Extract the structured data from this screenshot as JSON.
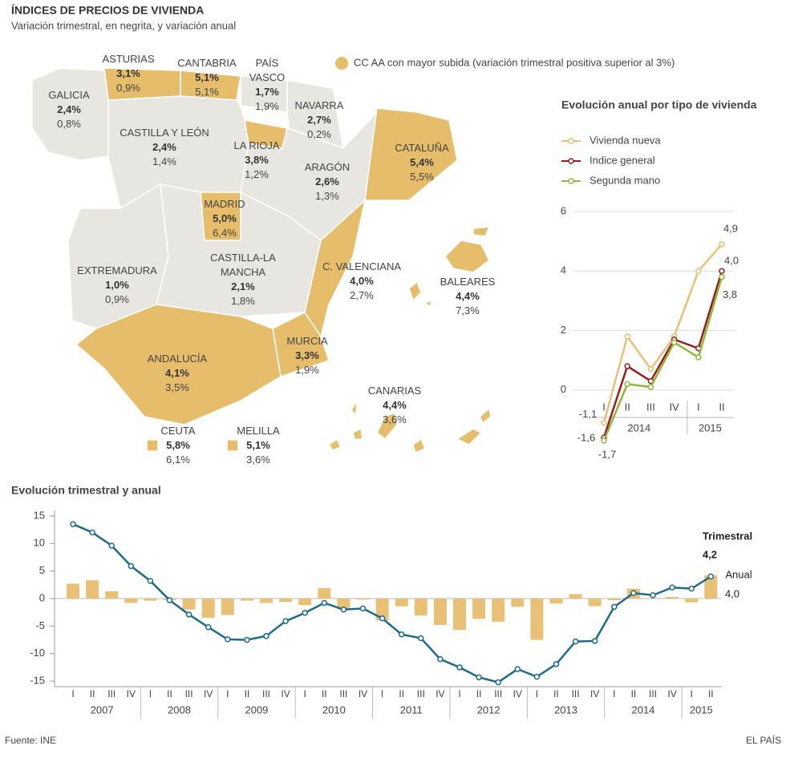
{
  "header": {
    "title": "ÍNDICES DE PRECIOS DE VIVIENDA",
    "subtitle": "Variación trimestral, en negrita, y variación anual"
  },
  "map": {
    "legend": "CC AA con mayor subida (variación trimestral positiva superior al 3%)",
    "highlight_color": "#e6bd6b",
    "base_color": "#e8e6e1",
    "regions": [
      {
        "name": "ASTURIAS",
        "quarterly": "3,1%",
        "annual": "0,9%",
        "highlighted": true
      },
      {
        "name": "CANTABRIA",
        "quarterly": "5,1%",
        "annual": "5,1%",
        "highlighted": true
      },
      {
        "name": "PAÍS VASCO",
        "quarterly": "1,7%",
        "annual": "1,9%",
        "highlighted": false
      },
      {
        "name": "GALICIA",
        "quarterly": "2,4%",
        "annual": "0,8%",
        "highlighted": false
      },
      {
        "name": "NAVARRA",
        "quarterly": "2,7%",
        "annual": "0,2%",
        "highlighted": false
      },
      {
        "name": "CASTILLA Y LEÓN",
        "quarterly": "2,4%",
        "annual": "1,4%",
        "highlighted": false
      },
      {
        "name": "LA RIOJA",
        "quarterly": "3,8%",
        "annual": "1,2%",
        "highlighted": true
      },
      {
        "name": "ARAGÓN",
        "quarterly": "2,6%",
        "annual": "1,3%",
        "highlighted": false
      },
      {
        "name": "CATALUÑA",
        "quarterly": "5,4%",
        "annual": "5,5%",
        "highlighted": true
      },
      {
        "name": "MADRID",
        "quarterly": "5,0%",
        "annual": "6,4%",
        "highlighted": true
      },
      {
        "name": "EXTREMADURA",
        "quarterly": "1,0%",
        "annual": "0,9%",
        "highlighted": false
      },
      {
        "name": "CASTILLA-LA MANCHA",
        "quarterly": "2,1%",
        "annual": "1,8%",
        "highlighted": false
      },
      {
        "name": "C. VALENCIANA",
        "quarterly": "4,0%",
        "annual": "2,7%",
        "highlighted": true
      },
      {
        "name": "BALEARES",
        "quarterly": "4,4%",
        "annual": "7,3%",
        "highlighted": true
      },
      {
        "name": "MURCIA",
        "quarterly": "3,3%",
        "annual": "1,9%",
        "highlighted": true
      },
      {
        "name": "ANDALUCÍA",
        "quarterly": "4,1%",
        "annual": "3,5%",
        "highlighted": true
      },
      {
        "name": "CANARIAS",
        "quarterly": "4,4%",
        "annual": "3,6%",
        "highlighted": true
      },
      {
        "name": "CEUTA",
        "quarterly": "5,8%",
        "annual": "6,1%",
        "highlighted": true
      },
      {
        "name": "MELILLA",
        "quarterly": "5,1%",
        "annual": "3,6%",
        "highlighted": true
      }
    ]
  },
  "chart_data": [
    {
      "type": "line",
      "title": "Evolución anual por tipo de vivienda",
      "categories": [
        "I",
        "II",
        "III",
        "IV",
        "I",
        "II"
      ],
      "year_labels": [
        "2014",
        "2015"
      ],
      "ylim": [
        -2,
        6
      ],
      "yticks": [
        0,
        2,
        4,
        6
      ],
      "grid": true,
      "series": [
        {
          "name": "Vivienda nueva",
          "color": "#e8c176",
          "values": [
            -1.1,
            1.8,
            0.7,
            1.8,
            4.0,
            4.9
          ],
          "value_labels": [
            "-1,1",
            null,
            null,
            null,
            null,
            "4,9"
          ]
        },
        {
          "name": "Indice general",
          "color": "#9b1b1f",
          "values": [
            -1.6,
            0.8,
            0.3,
            1.7,
            1.4,
            4.0
          ],
          "value_labels": [
            "-1,6",
            null,
            null,
            null,
            null,
            "4,0"
          ]
        },
        {
          "name": "Segunda mano",
          "color": "#8db83a",
          "values": [
            -1.7,
            0.2,
            0.1,
            1.6,
            1.1,
            3.8
          ],
          "value_labels": [
            "-1,7",
            null,
            null,
            null,
            null,
            "3,8"
          ]
        }
      ]
    },
    {
      "type": "combo",
      "title": "Evolución trimestral y anual",
      "categories": [
        "I",
        "II",
        "III",
        "IV",
        "I",
        "II",
        "III",
        "IV",
        "I",
        "II",
        "III",
        "IV",
        "I",
        "II",
        "III",
        "IV",
        "I",
        "II",
        "III",
        "IV",
        "I",
        "II",
        "III",
        "IV",
        "I",
        "II",
        "III",
        "IV",
        "I",
        "II",
        "III",
        "IV",
        "I",
        "II"
      ],
      "year_labels": [
        "2007",
        "2008",
        "2009",
        "2010",
        "2011",
        "2012",
        "2013",
        "2014",
        "2015"
      ],
      "ylim": [
        -16,
        16
      ],
      "yticks": [
        -15,
        -10,
        -5,
        0,
        5,
        10,
        15
      ],
      "series": [
        {
          "name": "Trimestral",
          "kind": "bar",
          "color": "#e8c176",
          "values": [
            2.7,
            3.3,
            1.3,
            -0.8,
            -0.4,
            -0.3,
            -2.0,
            -3.5,
            -3.0,
            -0.4,
            -0.8,
            -0.6,
            -1.2,
            1.9,
            -2.0,
            -0.2,
            -4.0,
            -1.4,
            -3.1,
            -4.8,
            -5.7,
            -3.7,
            -4.2,
            -1.5,
            -7.5,
            -0.9,
            0.8,
            -1.4,
            -0.3,
            1.8,
            0.1,
            0.3,
            -0.7,
            4.2
          ],
          "value_labels": [
            null,
            null,
            null,
            null,
            null,
            null,
            null,
            null,
            null,
            null,
            null,
            null,
            null,
            null,
            null,
            null,
            null,
            null,
            null,
            null,
            null,
            null,
            null,
            null,
            null,
            null,
            null,
            null,
            null,
            null,
            null,
            null,
            null,
            "4,2"
          ]
        },
        {
          "name": "Anual",
          "kind": "line",
          "color": "#1c6a8f",
          "values": [
            13.5,
            12.0,
            9.6,
            5.9,
            3.2,
            -0.3,
            -2.9,
            -5.2,
            -7.4,
            -7.5,
            -6.8,
            -4.1,
            -2.6,
            -0.8,
            -2.0,
            -1.8,
            -3.6,
            -6.5,
            -7.2,
            -11.0,
            -12.5,
            -14.3,
            -15.2,
            -12.8,
            -14.2,
            -11.9,
            -7.8,
            -7.7,
            -1.5,
            1.0,
            0.6,
            2.0,
            1.8,
            4.0
          ],
          "value_labels": [
            null,
            null,
            null,
            null,
            null,
            null,
            null,
            null,
            null,
            null,
            null,
            null,
            null,
            null,
            null,
            null,
            null,
            null,
            null,
            null,
            null,
            null,
            null,
            null,
            null,
            null,
            null,
            null,
            null,
            null,
            null,
            null,
            null,
            "4,0"
          ]
        }
      ]
    }
  ],
  "footer": {
    "source": "Fuente: INE",
    "brand": "EL PAÍS"
  }
}
